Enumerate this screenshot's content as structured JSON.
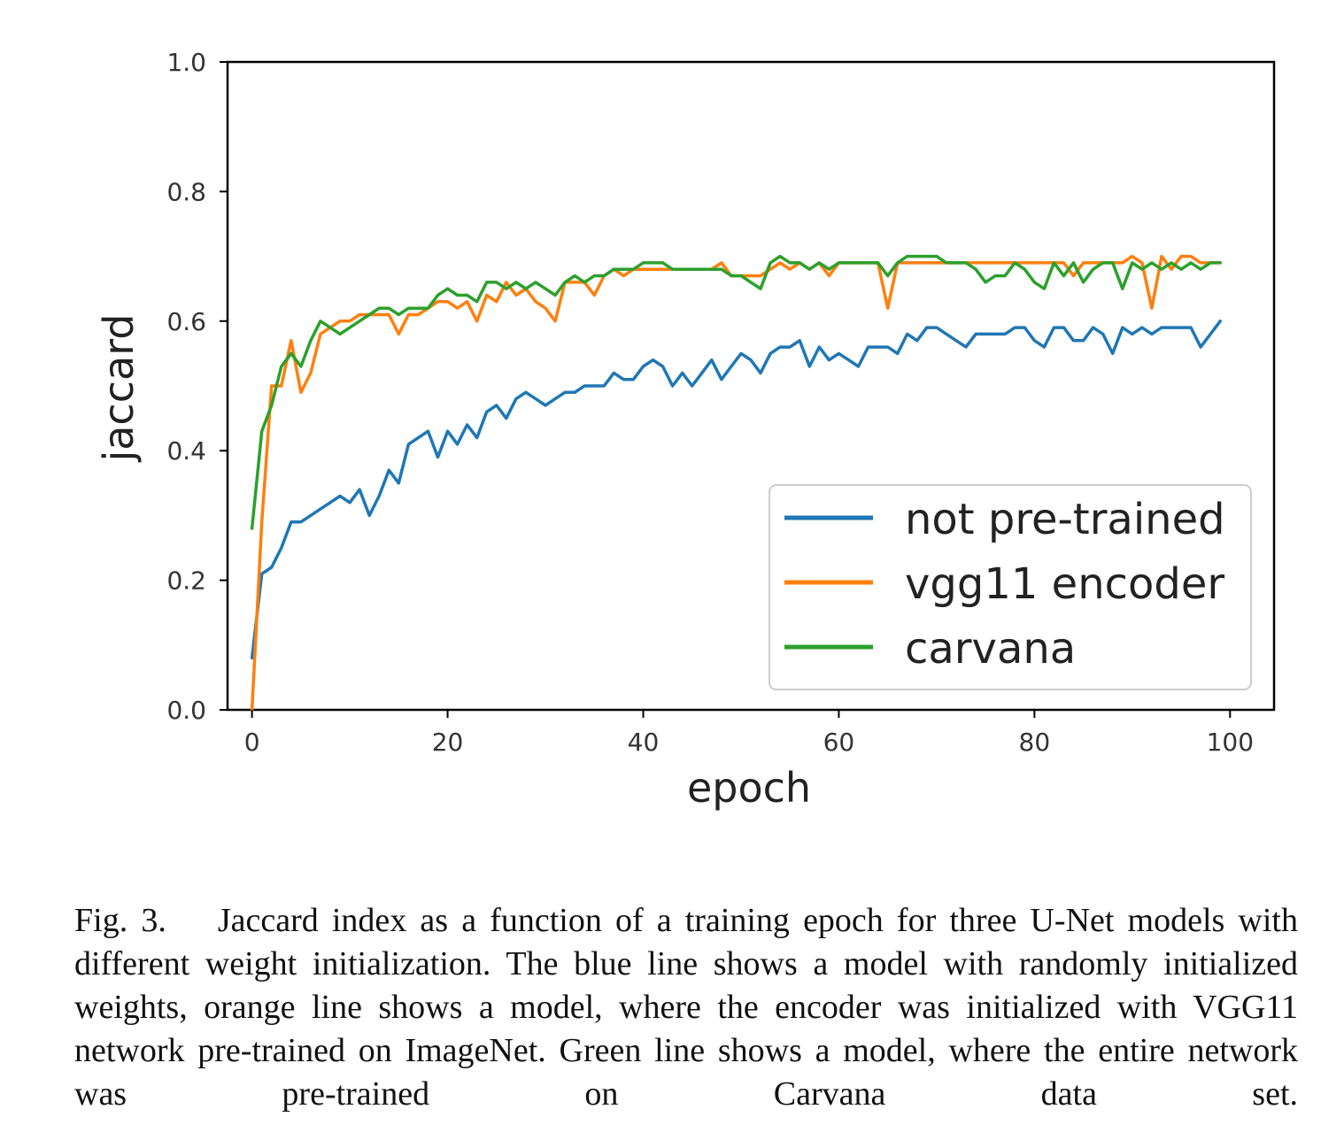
{
  "chart_data": {
    "type": "line",
    "title": "",
    "xlabel": "epoch",
    "ylabel": "jaccard",
    "xlim": [
      -2.5,
      104.5
    ],
    "ylim": [
      0.0,
      1.0
    ],
    "xticks": [
      0,
      20,
      40,
      60,
      80,
      100
    ],
    "yticks": [
      0.0,
      0.2,
      0.4,
      0.6,
      0.8,
      1.0
    ],
    "xtick_labels": [
      "0",
      "20",
      "40",
      "60",
      "80",
      "100"
    ],
    "ytick_labels": [
      "0.0",
      "0.2",
      "0.4",
      "0.6",
      "0.8",
      "1.0"
    ],
    "grid": false,
    "legend_position": "lower-right",
    "series": [
      {
        "name": "not pre-trained",
        "color": "#1f77b4",
        "x": [
          0,
          1,
          2,
          3,
          4,
          5,
          6,
          7,
          8,
          9,
          10,
          11,
          12,
          13,
          14,
          15,
          16,
          17,
          18,
          19,
          20,
          21,
          22,
          23,
          24,
          25,
          26,
          27,
          28,
          29,
          30,
          31,
          32,
          33,
          34,
          35,
          36,
          37,
          38,
          39,
          40,
          41,
          42,
          43,
          44,
          45,
          46,
          47,
          48,
          49,
          50,
          51,
          52,
          53,
          54,
          55,
          56,
          57,
          58,
          59,
          60,
          61,
          62,
          63,
          64,
          65,
          66,
          67,
          68,
          69,
          70,
          71,
          72,
          73,
          74,
          75,
          76,
          77,
          78,
          79,
          80,
          81,
          82,
          83,
          84,
          85,
          86,
          87,
          88,
          89,
          90,
          91,
          92,
          93,
          94,
          95,
          96,
          97,
          98,
          99
        ],
        "values": [
          0.08,
          0.21,
          0.22,
          0.25,
          0.29,
          0.29,
          0.3,
          0.31,
          0.32,
          0.33,
          0.32,
          0.34,
          0.3,
          0.33,
          0.37,
          0.35,
          0.41,
          0.42,
          0.43,
          0.39,
          0.43,
          0.41,
          0.44,
          0.42,
          0.46,
          0.47,
          0.45,
          0.48,
          0.49,
          0.48,
          0.47,
          0.48,
          0.49,
          0.49,
          0.5,
          0.5,
          0.5,
          0.52,
          0.51,
          0.51,
          0.53,
          0.54,
          0.53,
          0.5,
          0.52,
          0.5,
          0.52,
          0.54,
          0.51,
          0.53,
          0.55,
          0.54,
          0.52,
          0.55,
          0.56,
          0.56,
          0.57,
          0.53,
          0.56,
          0.54,
          0.55,
          0.54,
          0.53,
          0.56,
          0.56,
          0.56,
          0.55,
          0.58,
          0.57,
          0.59,
          0.59,
          0.58,
          0.57,
          0.56,
          0.58,
          0.58,
          0.58,
          0.58,
          0.59,
          0.59,
          0.57,
          0.56,
          0.59,
          0.59,
          0.57,
          0.57,
          0.59,
          0.58,
          0.55,
          0.59,
          0.58,
          0.59,
          0.58,
          0.59,
          0.59,
          0.59,
          0.59,
          0.56,
          0.58,
          0.6
        ]
      },
      {
        "name": "vgg11 encoder",
        "color": "#ff7f0e",
        "x": [
          0,
          1,
          2,
          3,
          4,
          5,
          6,
          7,
          8,
          9,
          10,
          11,
          12,
          13,
          14,
          15,
          16,
          17,
          18,
          19,
          20,
          21,
          22,
          23,
          24,
          25,
          26,
          27,
          28,
          29,
          30,
          31,
          32,
          33,
          34,
          35,
          36,
          37,
          38,
          39,
          40,
          41,
          42,
          43,
          44,
          45,
          46,
          47,
          48,
          49,
          50,
          51,
          52,
          53,
          54,
          55,
          56,
          57,
          58,
          59,
          60,
          61,
          62,
          63,
          64,
          65,
          66,
          67,
          68,
          69,
          70,
          71,
          72,
          73,
          74,
          75,
          76,
          77,
          78,
          79,
          80,
          81,
          82,
          83,
          84,
          85,
          86,
          87,
          88,
          89,
          90,
          91,
          92,
          93,
          94,
          95,
          96,
          97,
          98,
          99
        ],
        "values": [
          0.0,
          0.29,
          0.5,
          0.5,
          0.57,
          0.49,
          0.52,
          0.58,
          0.59,
          0.6,
          0.6,
          0.61,
          0.61,
          0.61,
          0.61,
          0.58,
          0.61,
          0.61,
          0.62,
          0.63,
          0.63,
          0.62,
          0.63,
          0.6,
          0.64,
          0.63,
          0.66,
          0.64,
          0.65,
          0.63,
          0.62,
          0.6,
          0.66,
          0.66,
          0.66,
          0.64,
          0.67,
          0.68,
          0.67,
          0.68,
          0.68,
          0.68,
          0.68,
          0.68,
          0.68,
          0.68,
          0.68,
          0.68,
          0.69,
          0.67,
          0.67,
          0.67,
          0.67,
          0.68,
          0.69,
          0.68,
          0.69,
          0.68,
          0.69,
          0.67,
          0.69,
          0.69,
          0.69,
          0.69,
          0.69,
          0.62,
          0.69,
          0.69,
          0.69,
          0.69,
          0.69,
          0.69,
          0.69,
          0.69,
          0.69,
          0.69,
          0.69,
          0.69,
          0.69,
          0.69,
          0.69,
          0.69,
          0.69,
          0.69,
          0.67,
          0.69,
          0.69,
          0.69,
          0.69,
          0.69,
          0.7,
          0.69,
          0.62,
          0.7,
          0.68,
          0.7,
          0.7,
          0.69,
          0.69,
          0.69
        ]
      },
      {
        "name": "carvana",
        "color": "#2ca02c",
        "x": [
          0,
          1,
          2,
          3,
          4,
          5,
          6,
          7,
          8,
          9,
          10,
          11,
          12,
          13,
          14,
          15,
          16,
          17,
          18,
          19,
          20,
          21,
          22,
          23,
          24,
          25,
          26,
          27,
          28,
          29,
          30,
          31,
          32,
          33,
          34,
          35,
          36,
          37,
          38,
          39,
          40,
          41,
          42,
          43,
          44,
          45,
          46,
          47,
          48,
          49,
          50,
          51,
          52,
          53,
          54,
          55,
          56,
          57,
          58,
          59,
          60,
          61,
          62,
          63,
          64,
          65,
          66,
          67,
          68,
          69,
          70,
          71,
          72,
          73,
          74,
          75,
          76,
          77,
          78,
          79,
          80,
          81,
          82,
          83,
          84,
          85,
          86,
          87,
          88,
          89,
          90,
          91,
          92,
          93,
          94,
          95,
          96,
          97,
          98,
          99
        ],
        "values": [
          0.28,
          0.43,
          0.47,
          0.53,
          0.55,
          0.53,
          0.57,
          0.6,
          0.59,
          0.58,
          0.59,
          0.6,
          0.61,
          0.62,
          0.62,
          0.61,
          0.62,
          0.62,
          0.62,
          0.64,
          0.65,
          0.64,
          0.64,
          0.63,
          0.66,
          0.66,
          0.65,
          0.66,
          0.65,
          0.66,
          0.65,
          0.64,
          0.66,
          0.67,
          0.66,
          0.67,
          0.67,
          0.68,
          0.68,
          0.68,
          0.69,
          0.69,
          0.69,
          0.68,
          0.68,
          0.68,
          0.68,
          0.68,
          0.68,
          0.67,
          0.67,
          0.66,
          0.65,
          0.69,
          0.7,
          0.69,
          0.69,
          0.68,
          0.69,
          0.68,
          0.69,
          0.69,
          0.69,
          0.69,
          0.69,
          0.67,
          0.69,
          0.7,
          0.7,
          0.7,
          0.7,
          0.69,
          0.69,
          0.69,
          0.68,
          0.66,
          0.67,
          0.67,
          0.69,
          0.68,
          0.66,
          0.65,
          0.69,
          0.67,
          0.69,
          0.66,
          0.68,
          0.69,
          0.69,
          0.65,
          0.69,
          0.68,
          0.69,
          0.68,
          0.69,
          0.68,
          0.69,
          0.68,
          0.69,
          0.69
        ]
      }
    ]
  },
  "caption": {
    "fig_num": "Fig. 3.",
    "text": "Jaccard index as a function of a training epoch for three U-Net models with different weight initialization. The blue line shows a model with randomly initialized weights, orange line shows a model, where the encoder was initialized with VGG11 network pre-trained on ImageNet. Green line shows a model, where the entire network was pre-trained on Carvana data set."
  }
}
